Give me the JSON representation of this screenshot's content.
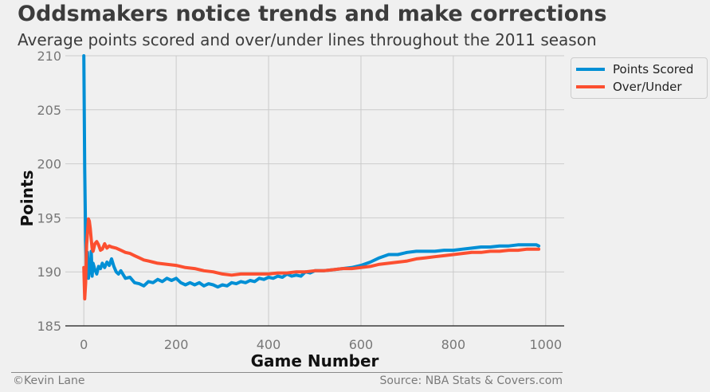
{
  "title": "Oddsmakers notice trends and make corrections",
  "subtitle": "Average points scored and over/under lines throughout the 2011 season",
  "footer": {
    "credit": "©Kevin Lane",
    "source": "Source: NBA Stats & Covers.com"
  },
  "colors": {
    "points_scored": "#008fd5",
    "over_under": "#fc4f30",
    "grid": "#cbcbcb",
    "background": "#f0f0f0",
    "axis_text": "#777777"
  },
  "chart_data": {
    "type": "line",
    "xlabel": "Game Number",
    "ylabel": "Points",
    "xlim": [
      -40,
      1040
    ],
    "ylim": [
      185,
      210
    ],
    "xticks": [
      0,
      200,
      400,
      600,
      800,
      1000
    ],
    "yticks": [
      185,
      190,
      195,
      200,
      205,
      210
    ],
    "grid": true,
    "legend_position": "outside-top-right",
    "series": [
      {
        "name": "Points Scored",
        "x": [
          0,
          2,
          4,
          6,
          8,
          10,
          12,
          14,
          16,
          18,
          20,
          24,
          28,
          32,
          36,
          40,
          45,
          50,
          55,
          60,
          65,
          70,
          75,
          80,
          90,
          100,
          110,
          120,
          130,
          140,
          150,
          160,
          170,
          180,
          190,
          200,
          210,
          220,
          230,
          240,
          250,
          260,
          270,
          280,
          290,
          300,
          310,
          320,
          330,
          340,
          350,
          360,
          370,
          380,
          390,
          400,
          410,
          420,
          430,
          440,
          450,
          460,
          470,
          480,
          490,
          500,
          520,
          540,
          560,
          580,
          600,
          620,
          640,
          660,
          680,
          700,
          720,
          740,
          760,
          780,
          800,
          820,
          840,
          860,
          880,
          900,
          920,
          940,
          960,
          980,
          985
        ],
        "values": [
          210.0,
          199.5,
          193.0,
          189.6,
          191.8,
          189.4,
          190.6,
          189.9,
          191.9,
          189.6,
          190.8,
          190.2,
          189.8,
          190.5,
          190.3,
          190.8,
          190.4,
          190.9,
          190.6,
          191.2,
          190.5,
          190.0,
          189.8,
          190.1,
          189.4,
          189.5,
          189.0,
          188.9,
          188.7,
          189.1,
          189.0,
          189.3,
          189.1,
          189.4,
          189.2,
          189.4,
          189.0,
          188.8,
          189.0,
          188.8,
          189.0,
          188.7,
          188.9,
          188.8,
          188.6,
          188.8,
          188.7,
          189.0,
          188.9,
          189.1,
          189.0,
          189.2,
          189.1,
          189.4,
          189.3,
          189.5,
          189.4,
          189.6,
          189.5,
          189.8,
          189.6,
          189.7,
          189.6,
          190.0,
          189.9,
          190.1,
          190.1,
          190.2,
          190.3,
          190.4,
          190.6,
          190.9,
          191.3,
          191.6,
          191.6,
          191.8,
          191.9,
          191.9,
          191.9,
          192.0,
          192.0,
          192.1,
          192.2,
          192.3,
          192.3,
          192.4,
          192.4,
          192.5,
          192.5,
          192.5,
          192.4
        ]
      },
      {
        "name": "Over/Under",
        "x": [
          0,
          2,
          4,
          6,
          8,
          10,
          12,
          14,
          16,
          18,
          20,
          24,
          28,
          32,
          36,
          40,
          45,
          50,
          55,
          60,
          70,
          80,
          90,
          100,
          110,
          120,
          130,
          140,
          150,
          160,
          180,
          200,
          220,
          240,
          260,
          280,
          300,
          320,
          340,
          360,
          380,
          400,
          420,
          440,
          460,
          480,
          500,
          520,
          540,
          560,
          580,
          600,
          620,
          640,
          660,
          680,
          700,
          720,
          740,
          760,
          780,
          800,
          820,
          840,
          860,
          880,
          900,
          920,
          940,
          960,
          980,
          985
        ],
        "values": [
          190.4,
          187.5,
          189.0,
          192.5,
          193.6,
          194.9,
          194.7,
          194.0,
          193.0,
          192.2,
          191.9,
          192.6,
          192.8,
          192.5,
          192.0,
          192.1,
          192.6,
          192.2,
          192.4,
          192.3,
          192.2,
          192.0,
          191.8,
          191.7,
          191.5,
          191.3,
          191.1,
          191.0,
          190.9,
          190.8,
          190.7,
          190.6,
          190.4,
          190.3,
          190.1,
          190.0,
          189.8,
          189.7,
          189.8,
          189.8,
          189.8,
          189.8,
          189.9,
          189.9,
          190.0,
          190.0,
          190.1,
          190.1,
          190.2,
          190.3,
          190.3,
          190.4,
          190.5,
          190.7,
          190.8,
          190.9,
          191.0,
          191.2,
          191.3,
          191.4,
          191.5,
          191.6,
          191.7,
          191.8,
          191.8,
          191.9,
          191.9,
          192.0,
          192.0,
          192.1,
          192.1,
          192.1
        ]
      }
    ]
  }
}
